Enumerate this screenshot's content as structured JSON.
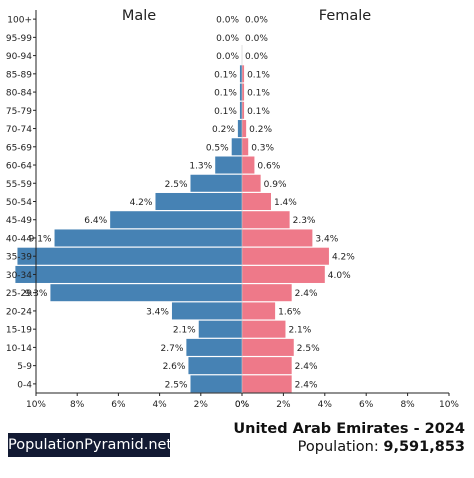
{
  "chart_data": {
    "type": "bar",
    "orientation": "horizontal-pyramid",
    "categories": [
      "0-4",
      "5-9",
      "10-14",
      "15-19",
      "20-24",
      "25-29",
      "30-34",
      "35-39",
      "40-44",
      "45-49",
      "50-54",
      "55-59",
      "60-64",
      "65-69",
      "70-74",
      "75-79",
      "80-84",
      "85-89",
      "90-94",
      "95-99",
      "100+"
    ],
    "series": [
      {
        "name": "Male",
        "values": [
          2.5,
          2.6,
          2.7,
          2.1,
          3.4,
          9.3,
          11.0,
          10.9,
          9.1,
          6.4,
          4.2,
          2.5,
          1.3,
          0.5,
          0.2,
          0.1,
          0.1,
          0.1,
          0.0,
          0.0,
          0.0
        ],
        "labels": [
          "2.5%",
          "2.6%",
          "2.7%",
          "2.1%",
          "3.4%",
          "9.3%",
          "",
          "",
          "9.1%",
          "6.4%",
          "4.2%",
          "2.5%",
          "1.3%",
          "0.5%",
          "0.2%",
          "0.1%",
          "0.1%",
          "0.1%",
          "0.0%",
          "0.0%",
          "0.0%"
        ]
      },
      {
        "name": "Female",
        "values": [
          2.4,
          2.4,
          2.5,
          2.1,
          1.6,
          2.4,
          4.0,
          4.2,
          3.4,
          2.3,
          1.4,
          0.9,
          0.6,
          0.3,
          0.2,
          0.1,
          0.1,
          0.1,
          0.0,
          0.0,
          0.0
        ],
        "labels": [
          "2.4%",
          "2.4%",
          "2.5%",
          "2.1%",
          "1.6%",
          "2.4%",
          "4.0%",
          "4.2%",
          "3.4%",
          "2.3%",
          "1.4%",
          "0.9%",
          "0.6%",
          "0.3%",
          "0.2%",
          "0.1%",
          "0.1%",
          "0.1%",
          "0.0%",
          "0.0%",
          "0.0%"
        ]
      }
    ],
    "xlim": [
      -10,
      10
    ],
    "x_ticks_left": [
      "10%",
      "8%",
      "6%",
      "4%",
      "2%",
      "0%"
    ],
    "x_ticks_right": [
      "0%",
      "2%",
      "4%",
      "6%",
      "8%",
      "10%"
    ],
    "x_tick_values_left": [
      -10,
      -8,
      -6,
      -4,
      -2,
      0
    ],
    "x_tick_values_right": [
      0,
      2,
      4,
      6,
      8,
      10
    ],
    "grid": false
  },
  "colors": {
    "male": "#4682b4",
    "female": "#ee7989",
    "axis": "#222222"
  },
  "brand_label": "PopulationPyramid.net",
  "country_title": "United Arab Emirates - 2024",
  "population_label": "Population:",
  "population_value": "9,591,853"
}
